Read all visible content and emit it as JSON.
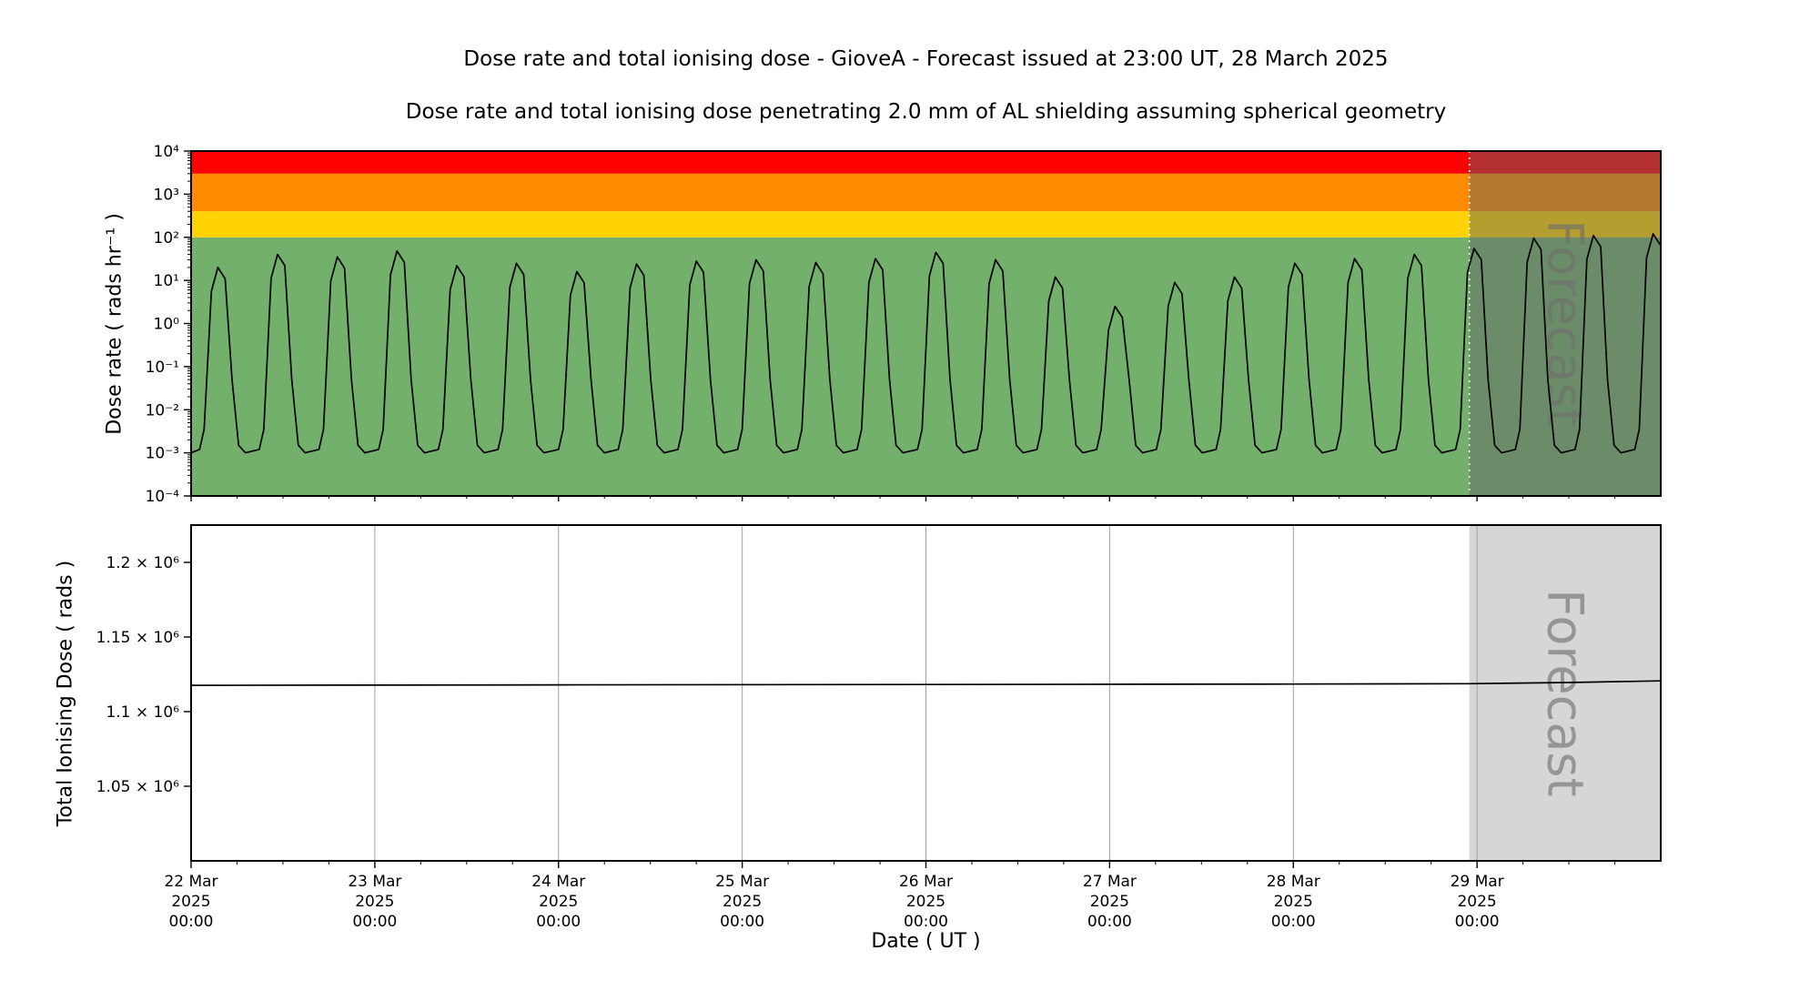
{
  "header": {
    "title": "Dose rate and total ionising dose - GioveA - Forecast issued at 23:00 UT, 28 March 2025",
    "subtitle": "Dose rate and total ionising dose penetrating 2.0 mm of AL shielding assuming spherical geometry"
  },
  "x_axis": {
    "label": "Date ( UT )",
    "range_hours": [
      0,
      192
    ],
    "major_tick_every_hours": 24,
    "minor_tick_every_hours": 6,
    "ticks": [
      {
        "hour": 0,
        "lines": [
          "22 Mar",
          "2025",
          "00:00"
        ]
      },
      {
        "hour": 24,
        "lines": [
          "23 Mar",
          "2025",
          "00:00"
        ]
      },
      {
        "hour": 48,
        "lines": [
          "24 Mar",
          "2025",
          "00:00"
        ]
      },
      {
        "hour": 72,
        "lines": [
          "25 Mar",
          "2025",
          "00:00"
        ]
      },
      {
        "hour": 96,
        "lines": [
          "26 Mar",
          "2025",
          "00:00"
        ]
      },
      {
        "hour": 120,
        "lines": [
          "27 Mar",
          "2025",
          "00:00"
        ]
      },
      {
        "hour": 144,
        "lines": [
          "28 Mar",
          "2025",
          "00:00"
        ]
      },
      {
        "hour": 168,
        "lines": [
          "29 Mar",
          "2025",
          "00:00"
        ]
      }
    ]
  },
  "forecast": {
    "label": "Forecast",
    "start_hour": 167,
    "overlay_color_top": "rgba(100,100,100,0.48)",
    "overlay_color_bottom": "rgba(0,0,0,0.16)",
    "label_color": "#6e6e6e",
    "divider_color": "#ffffff"
  },
  "chart_data": [
    {
      "type": "line",
      "name": "dose_rate_panel",
      "ylabel": "Dose rate ( rads hr⁻¹ )",
      "yscale": "log",
      "ylim": [
        0.0001,
        10000
      ],
      "y_ticks": [
        {
          "value": 10000,
          "label": "10⁴"
        },
        {
          "value": 1000,
          "label": "10³"
        },
        {
          "value": 100,
          "label": "10²"
        },
        {
          "value": 10,
          "label": "10¹"
        },
        {
          "value": 1,
          "label": "10⁰"
        },
        {
          "value": 0.1,
          "label": "10⁻¹"
        },
        {
          "value": 0.01,
          "label": "10⁻²"
        },
        {
          "value": 0.001,
          "label": "10⁻³"
        },
        {
          "value": 0.0001,
          "label": "10⁻⁴"
        }
      ],
      "threshold_bands": [
        {
          "name": "nominal-green",
          "from": 0.0001,
          "to": 100,
          "color": "#72b06c"
        },
        {
          "name": "warning-yellow",
          "from": 100,
          "to": 400,
          "color": "#ffd200"
        },
        {
          "name": "alert-orange",
          "from": 400,
          "to": 3000,
          "color": "#ff8c00"
        },
        {
          "name": "critical-red",
          "from": 3000,
          "to": 10000,
          "color": "#ff0000"
        }
      ],
      "series": [
        {
          "name": "dose-rate",
          "color": "#000000",
          "trough_value": 0.001,
          "peaks": [
            {
              "hour": 4.0,
              "value": 20
            },
            {
              "hour": 11.8,
              "value": 40
            },
            {
              "hour": 19.6,
              "value": 35
            },
            {
              "hour": 27.4,
              "value": 48
            },
            {
              "hour": 35.2,
              "value": 22
            },
            {
              "hour": 43.0,
              "value": 25
            },
            {
              "hour": 50.9,
              "value": 16
            },
            {
              "hour": 58.7,
              "value": 24
            },
            {
              "hour": 66.5,
              "value": 28
            },
            {
              "hour": 74.3,
              "value": 30
            },
            {
              "hour": 82.1,
              "value": 26
            },
            {
              "hour": 89.9,
              "value": 32
            },
            {
              "hour": 97.8,
              "value": 45
            },
            {
              "hour": 105.6,
              "value": 30
            },
            {
              "hour": 113.4,
              "value": 12
            },
            {
              "hour": 121.2,
              "value": 2.5
            },
            {
              "hour": 129.0,
              "value": 9
            },
            {
              "hour": 136.8,
              "value": 12
            },
            {
              "hour": 144.7,
              "value": 25
            },
            {
              "hour": 152.5,
              "value": 32
            },
            {
              "hour": 160.3,
              "value": 40
            },
            {
              "hour": 168.1,
              "value": 55
            },
            {
              "hour": 175.9,
              "value": 95
            },
            {
              "hour": 183.7,
              "value": 110
            },
            {
              "hour": 191.5,
              "value": 120
            }
          ]
        }
      ]
    },
    {
      "type": "line",
      "name": "total_ionising_dose_panel",
      "ylabel": "Total Ionising Dose ( rads )",
      "yscale": "linear",
      "ylim": [
        1000000,
        1225000
      ],
      "grid": "vertical",
      "grid_color": "#a0a0a0",
      "y_ticks": [
        {
          "value": 1200000,
          "label": "1.2 × 10⁶"
        },
        {
          "value": 1150000,
          "label": "1.15 × 10⁶"
        },
        {
          "value": 1100000,
          "label": "1.1 × 10⁶"
        },
        {
          "value": 1050000,
          "label": "1.05 × 10⁶"
        }
      ],
      "series": [
        {
          "name": "total-dose",
          "color": "#000000",
          "points": [
            [
              0,
              1117600
            ],
            [
              48,
              1117900
            ],
            [
              96,
              1118200
            ],
            [
              144,
              1118500
            ],
            [
              167,
              1118700
            ],
            [
              180,
              1119500
            ],
            [
              192,
              1120600
            ]
          ]
        }
      ]
    }
  ]
}
